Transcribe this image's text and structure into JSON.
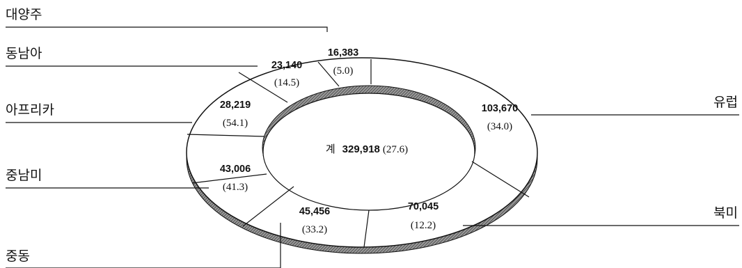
{
  "chart_data": {
    "type": "pie",
    "style": "donut",
    "total": {
      "label": "계",
      "value": "329,918",
      "pct": "(27.6)"
    },
    "slices": [
      {
        "region": "유럽",
        "value": "103,670",
        "pct": "(34.0)",
        "amount": 103670
      },
      {
        "region": "북미",
        "value": "70,045",
        "pct": "(12.2)",
        "amount": 70045
      },
      {
        "region": "중동",
        "value": "45,456",
        "pct": "(33.2)",
        "amount": 45456
      },
      {
        "region": "중남미",
        "value": "43,006",
        "pct": "(41.3)",
        "amount": 43006
      },
      {
        "region": "아프리카",
        "value": "28,219",
        "pct": "(54.1)",
        "amount": 28219
      },
      {
        "region": "동남아",
        "value": "23,140",
        "pct": "(14.5)",
        "amount": 23140
      },
      {
        "region": "대양주",
        "value": "16,383",
        "pct": "(5.0)",
        "amount": 16383
      }
    ]
  }
}
